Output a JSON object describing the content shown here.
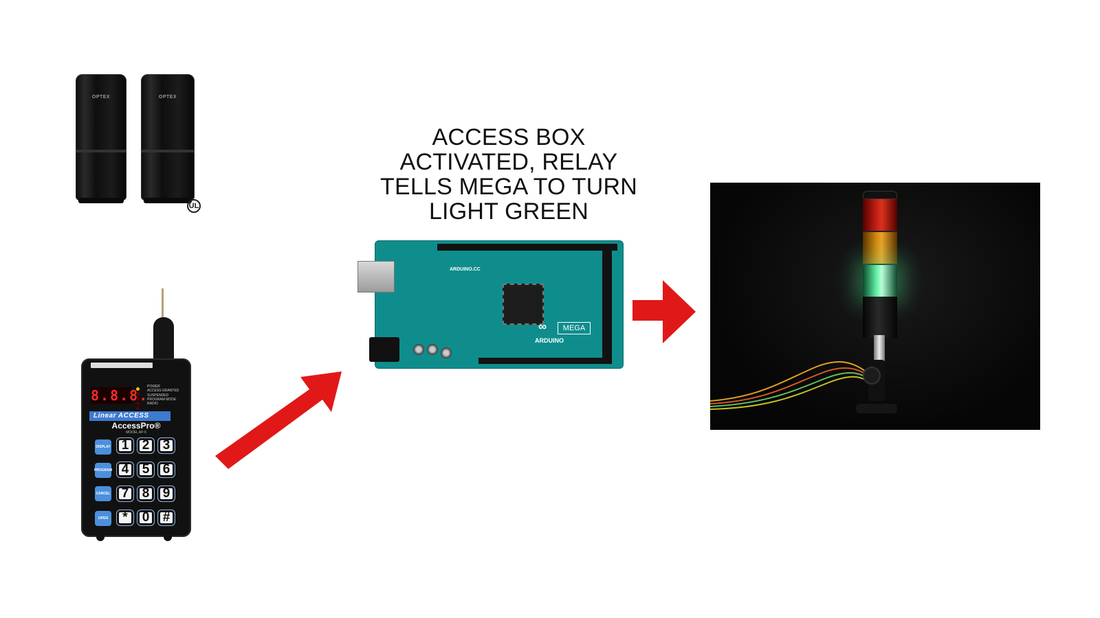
{
  "caption": {
    "line1": "ACCESS BOX",
    "line2": "ACTIVATED, RELAY",
    "line3": "TELLS MEGA TO TURN",
    "line4": "LIGHT GREEN"
  },
  "sensors": {
    "brand_left": "OPTEX",
    "brand_right": "OPTEX"
  },
  "keypad": {
    "display_text": "8.8.8.",
    "status_items": [
      "POWER",
      "ACCESS GRANTED",
      "SUSPENDED",
      "PROGRAM MODE",
      "RADIO"
    ],
    "brand": "Linear ACCESS",
    "product": "AccessPro®",
    "model": "MODEL AP-5",
    "function_keys": [
      "DISPLAY",
      "PROGRAM",
      "CANCEL",
      "OPEN"
    ],
    "number_keys": [
      "1",
      "2",
      "3",
      "4",
      "5",
      "6",
      "7",
      "8",
      "9",
      "*",
      "0",
      "#"
    ]
  },
  "arduino": {
    "site": "ARDUINO.CC",
    "logo": "∞",
    "model": "MEGA",
    "name": "ARDUINO"
  },
  "colors": {
    "arrow": "#e01818",
    "board": "#0f8d8d",
    "light_active": "#63f2a6"
  }
}
